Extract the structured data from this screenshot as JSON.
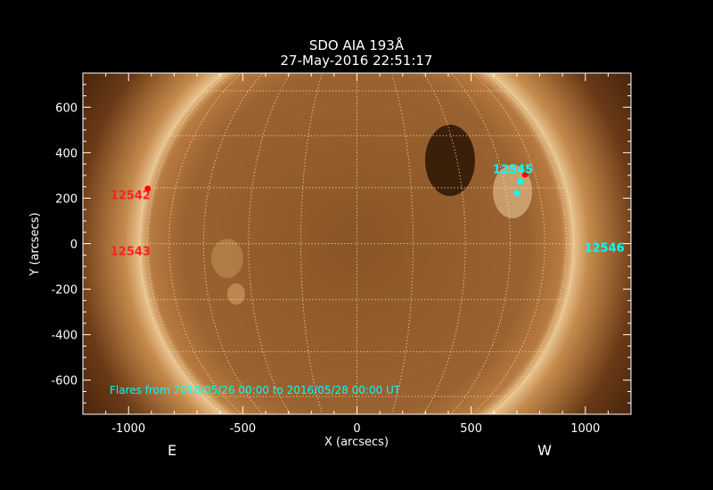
{
  "title": {
    "line1": "SDO AIA 193Å",
    "line2": "27-May-2016 22:51:17"
  },
  "axes": {
    "xlabel": "X (arcsecs)",
    "ylabel": "Y (arcsecs)",
    "xlim": [
      -1200,
      1200
    ],
    "ylim": [
      -750,
      750
    ],
    "xticks": [
      -1000,
      -500,
      0,
      500,
      1000
    ],
    "yticks": [
      -600,
      -400,
      -200,
      0,
      200,
      400,
      600
    ],
    "x_minor_step": 100,
    "y_minor_step": 50,
    "solar_radius_arcsec": 950,
    "grid_step_deg": 15
  },
  "orientation": {
    "east": "E",
    "west": "W"
  },
  "active_regions": [
    {
      "label": "12542",
      "color": "#ff2020",
      "x": -1080,
      "y": 195
    },
    {
      "label": "12543",
      "color": "#ff2020",
      "x": -1080,
      "y": -50
    },
    {
      "label": "12545",
      "color": "#00ffff",
      "x": 595,
      "y": 310
    },
    {
      "label": "12546",
      "color": "#00ffff",
      "x": 995,
      "y": -35
    }
  ],
  "flares": [
    {
      "x": -916,
      "y": 242,
      "color": "#ff0000"
    },
    {
      "x": 736,
      "y": 304,
      "color": "#ff0000"
    },
    {
      "x": 716,
      "y": 273,
      "color": "#00ffff"
    },
    {
      "x": 700,
      "y": 222,
      "color": "#00ffff"
    }
  ],
  "flare_note": "Flares from 2016/05/26 00:00 to 2016/05/28 00:00 UT",
  "colors": {
    "note": "#00ffff",
    "grid": "#ffe6b0",
    "disk": "#a86a2c",
    "corona": "#e8b880"
  }
}
